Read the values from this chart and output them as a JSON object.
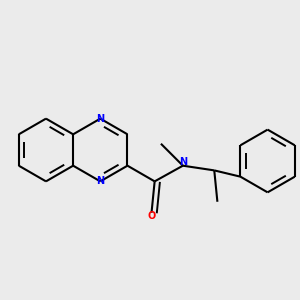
{
  "bg_color": "#EBEBEB",
  "bond_color": "#000000",
  "N_color": "#0000FF",
  "O_color": "#FF0000",
  "lw": 1.5,
  "lw_inner": 1.4,
  "figsize": [
    3.0,
    3.0
  ],
  "dpi": 100,
  "xlim": [
    0.05,
    0.95
  ],
  "ylim": [
    0.18,
    0.82
  ]
}
